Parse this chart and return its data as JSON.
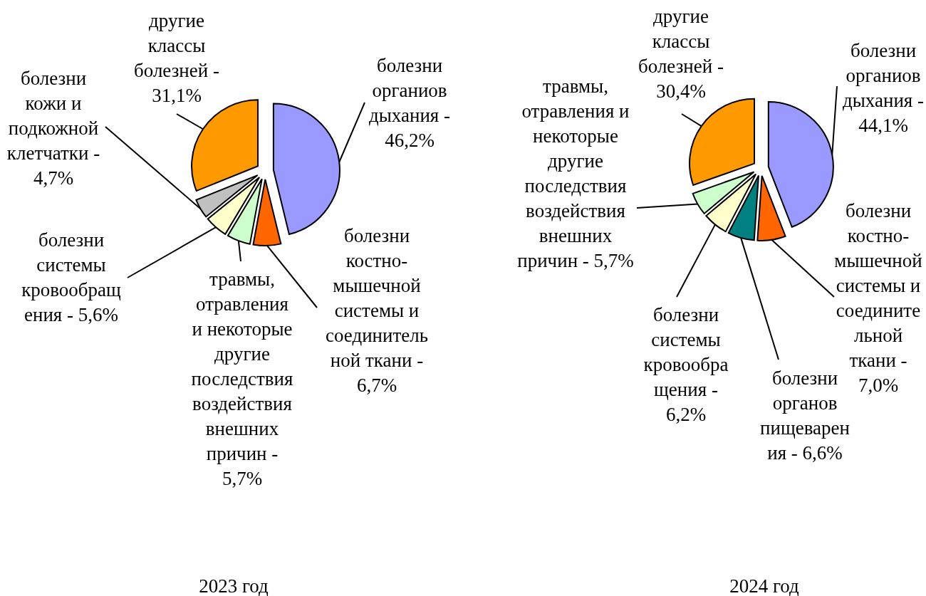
{
  "chart_data": [
    {
      "type": "pie",
      "title": "2023 год",
      "categories": [
        "болезни органиов дыхания -",
        "болезни костно-мышечной системы и соединительной ткани -",
        "травмы, отравления и некоторые другие последствия воздействия внешних причин -",
        "болезни системы кровообращения -",
        "болезни кожи и подкожной клетчатки -",
        "другие классы болезней -"
      ],
      "values": [
        46.2,
        6.7,
        5.7,
        5.6,
        4.7,
        31.1
      ],
      "colors": [
        "#9999ff",
        "#ff6600",
        "#ccffcc",
        "#ffffcc",
        "#c0c0c0",
        "#ff9900"
      ],
      "value_labels": [
        "46,2%",
        "6,7%",
        "5,7%",
        "5,6%",
        "4,7%",
        "31,1%"
      ]
    },
    {
      "type": "pie",
      "title": "2024 год",
      "categories": [
        "болезни органиов дыхания -",
        "болезни костно-мышечной системы и соединительной ткани -",
        "болезни органов пищеварения -",
        "болезни системы кровообращения -",
        "травмы, отравления и некоторые другие последствия воздействия внешних причин -",
        "другие классы болезней -"
      ],
      "values": [
        44.1,
        7.0,
        6.6,
        6.2,
        5.7,
        30.4
      ],
      "colors": [
        "#9999ff",
        "#ff6600",
        "#008080",
        "#ffffcc",
        "#ccffcc",
        "#ff9900"
      ],
      "value_labels": [
        "44,1%",
        "7,0%",
        "6,6%",
        "6,2%",
        "5,7%",
        "30,4%"
      ]
    }
  ]
}
